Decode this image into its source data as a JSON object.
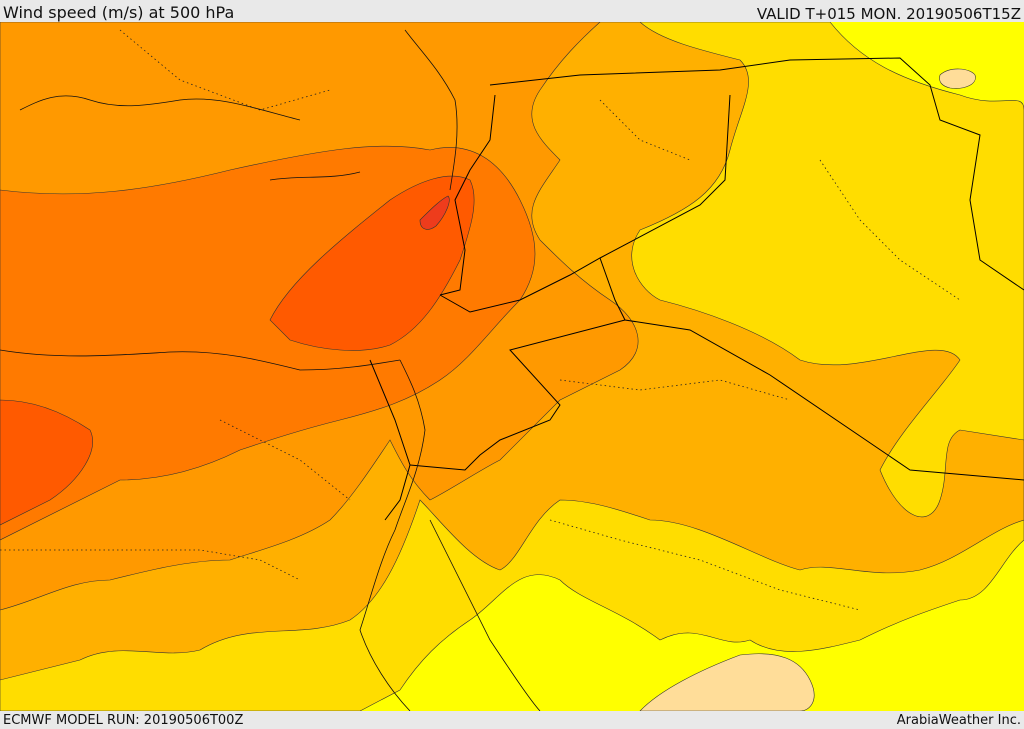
{
  "header": {
    "title": "Wind speed (m/s) at 500 hPa",
    "valid_time": "VALID T+015 MON. 20190506T15Z"
  },
  "footer": {
    "model_run": "ECMWF MODEL RUN: 20190506T00Z",
    "credit": "ArabiaWeather Inc."
  },
  "colors": {
    "lightest": "#ffff00",
    "pale": "#ffdd99",
    "band1": "#ffdd00",
    "band2": "#ffb000",
    "band3": "#ff9900",
    "band4": "#ff7a00",
    "band5": "#ff5a00",
    "band6": "#ee3c1c",
    "contour": "#333333",
    "border": "#000000"
  }
}
